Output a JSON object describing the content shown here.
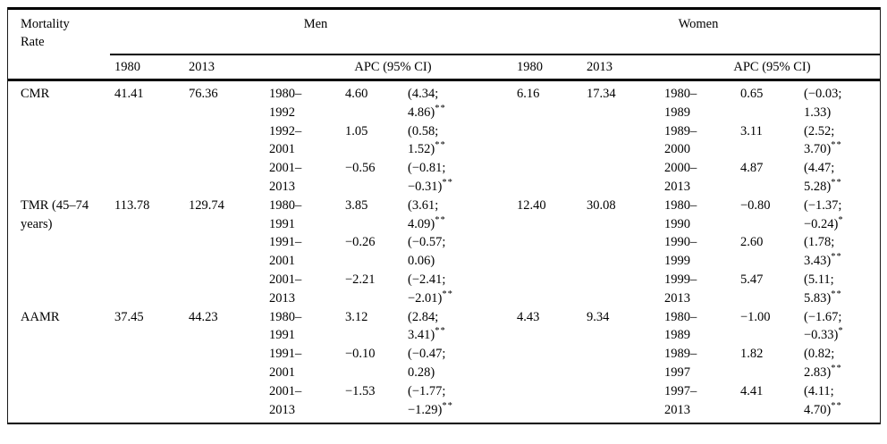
{
  "table": {
    "header": {
      "col1": "Mortality Rate",
      "men_label": "Men",
      "women_label": "Women",
      "year_1980": "1980",
      "year_2013": "2013",
      "apc_col": "APC (95% CI)"
    },
    "rows": [
      {
        "label": "CMR",
        "men": {
          "y1980": "41.41",
          "y2013": "76.36",
          "periods": [
            {
              "start": "1980",
              "end": "1992",
              "apc": "4.60",
              "ci_low": "4.34",
              "ci_high": "4.86",
              "sig": "**"
            },
            {
              "start": "1992",
              "end": "2001",
              "apc": "1.05",
              "ci_low": "0.58",
              "ci_high": "1.52",
              "sig": "**"
            },
            {
              "start": "2001",
              "end": "2013",
              "apc": "−0.56",
              "ci_low": "−0.81",
              "ci_high": "−0.31",
              "sig": "**"
            }
          ]
        },
        "women": {
          "y1980": "6.16",
          "y2013": "17.34",
          "periods": [
            {
              "start": "1980",
              "end": "1989",
              "apc": "0.65",
              "ci_low": "−0.03",
              "ci_high": "1.33",
              "sig": ""
            },
            {
              "start": "1989",
              "end": "2000",
              "apc": "3.11",
              "ci_low": "2.52",
              "ci_high": "3.70",
              "sig": "**"
            },
            {
              "start": "2000",
              "end": "2013",
              "apc": "4.87",
              "ci_low": "4.47",
              "ci_high": "5.28",
              "sig": "**"
            }
          ]
        }
      },
      {
        "label": "TMR (45–74 years)",
        "men": {
          "y1980": "113.78",
          "y2013": "129.74",
          "periods": [
            {
              "start": "1980",
              "end": "1991",
              "apc": "3.85",
              "ci_low": "3.61",
              "ci_high": "4.09",
              "sig": "**"
            },
            {
              "start": "1991",
              "end": "2001",
              "apc": "−0.26",
              "ci_low": "−0.57",
              "ci_high": "0.06",
              "sig": ""
            },
            {
              "start": "2001",
              "end": "2013",
              "apc": "−2.21",
              "ci_low": "−2.41",
              "ci_high": "−2.01",
              "sig": "**"
            }
          ]
        },
        "women": {
          "y1980": "12.40",
          "y2013": "30.08",
          "periods": [
            {
              "start": "1980",
              "end": "1990",
              "apc": "−0.80",
              "ci_low": "−1.37",
              "ci_high": "−0.24",
              "sig": "*"
            },
            {
              "start": "1990",
              "end": "1999",
              "apc": "2.60",
              "ci_low": "1.78",
              "ci_high": "3.43",
              "sig": "**"
            },
            {
              "start": "1999",
              "end": "2013",
              "apc": "5.47",
              "ci_low": "5.11",
              "ci_high": "5.83",
              "sig": "**"
            }
          ]
        }
      },
      {
        "label": "AAMR",
        "men": {
          "y1980": "37.45",
          "y2013": "44.23",
          "periods": [
            {
              "start": "1980",
              "end": "1991",
              "apc": "3.12",
              "ci_low": "2.84",
              "ci_high": "3.41",
              "sig": "**"
            },
            {
              "start": "1991",
              "end": "2001",
              "apc": "−0.10",
              "ci_low": "−0.47",
              "ci_high": "0.28",
              "sig": ""
            },
            {
              "start": "2001",
              "end": "2013",
              "apc": "−1.53",
              "ci_low": "−1.77",
              "ci_high": "−1.29",
              "sig": "**"
            }
          ]
        },
        "women": {
          "y1980": "4.43",
          "y2013": "9.34",
          "periods": [
            {
              "start": "1980",
              "end": "1989",
              "apc": "−1.00",
              "ci_low": "−1.67",
              "ci_high": "−0.33",
              "sig": "*"
            },
            {
              "start": "1989",
              "end": "1997",
              "apc": "1.82",
              "ci_low": "0.82",
              "ci_high": "2.83",
              "sig": "**"
            },
            {
              "start": "1997",
              "end": "2013",
              "apc": "4.41",
              "ci_low": "4.11",
              "ci_high": "4.70",
              "sig": "**"
            }
          ]
        }
      }
    ]
  }
}
